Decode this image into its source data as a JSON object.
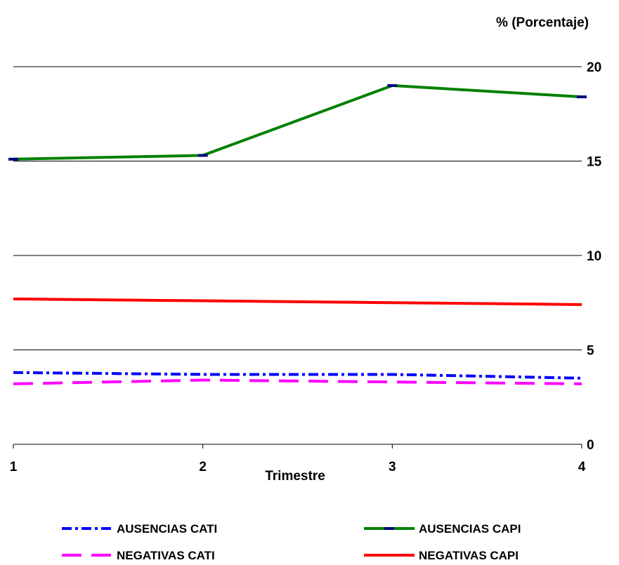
{
  "chart_data": {
    "type": "line",
    "xlabel": "Trimestre",
    "ylabel": "% (Porcentaje)",
    "categories": [
      "1",
      "2",
      "3",
      "4"
    ],
    "ylim": [
      0,
      20
    ],
    "yticks": [
      "0",
      "5",
      "10",
      "15",
      "20"
    ],
    "grid": true,
    "legend_position": "bottom",
    "series": [
      {
        "name": "AUSENCIAS CATI",
        "values": [
          3.8,
          3.7,
          3.7,
          3.5
        ],
        "color": "#0000ff",
        "style": "dash-dot"
      },
      {
        "name": "AUSENCIAS CAPI",
        "values": [
          15.1,
          15.3,
          19.0,
          18.4
        ],
        "color": "#008000",
        "style": "solid-marker"
      },
      {
        "name": "NEGATIVAS CATI",
        "values": [
          3.2,
          3.4,
          3.3,
          3.2
        ],
        "color": "#ff00ff",
        "style": "long-dash"
      },
      {
        "name": "NEGATIVAS CAPI",
        "values": [
          7.7,
          7.6,
          7.5,
          7.4
        ],
        "color": "#ff0000",
        "style": "solid"
      }
    ]
  }
}
